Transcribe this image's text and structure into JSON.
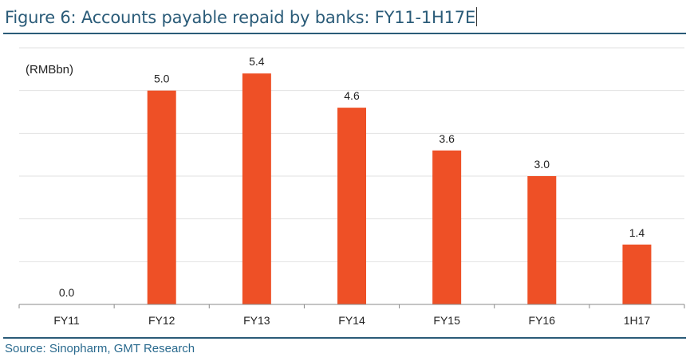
{
  "figure": {
    "title": "Figure 6: Accounts payable repaid by banks: FY11-1H17E",
    "source": "Source: Sinopharm, GMT Research"
  },
  "chart_data": {
    "type": "bar",
    "unit_label": "(RMBbn)",
    "categories": [
      "FY11",
      "FY12",
      "FY13",
      "FY14",
      "FY15",
      "FY16",
      "1H17"
    ],
    "values": [
      0.0,
      5.0,
      5.4,
      4.6,
      3.6,
      3.0,
      1.4
    ],
    "value_labels": [
      "0.0",
      "5.0",
      "5.4",
      "4.6",
      "3.6",
      "3.0",
      "1.4"
    ],
    "ylim": [
      0,
      6
    ],
    "grid": true,
    "legend": "none",
    "bar_color": "#ee5026",
    "grid_color": "#e2e2e2",
    "axis_color": "#8a8a8a"
  }
}
